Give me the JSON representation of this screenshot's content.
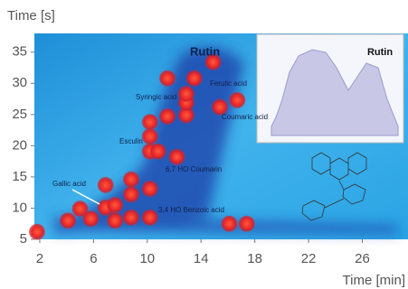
{
  "chart_data": {
    "type": "scatter",
    "y_label": "Time [s]",
    "x_label": "Time [min]",
    "x": [
      1.8,
      4.1,
      5.0,
      5.8,
      6.9,
      6.9,
      7.6,
      7.6,
      8.8,
      8.8,
      8.8,
      10.2,
      10.2,
      10.2,
      10.2,
      10.2,
      10.8,
      11.5,
      11.5,
      12.2,
      12.9,
      12.9,
      12.9,
      13.5,
      14.9,
      15.4,
      16.7,
      16.1,
      17.4
    ],
    "values": [
      6.2,
      8.0,
      9.9,
      8.3,
      10.1,
      13.7,
      8.0,
      10.5,
      8.5,
      12.2,
      14.6,
      8.5,
      13.1,
      19.1,
      21.5,
      23.8,
      19.1,
      24.7,
      30.8,
      18.2,
      24.9,
      26.9,
      28.3,
      30.8,
      33.4,
      26.2,
      27.3,
      7.5,
      7.5
    ],
    "color": "#e8262a",
    "xlim": [
      1.6,
      29.4
    ],
    "ylim": [
      5,
      38
    ],
    "xticks": [
      2,
      6,
      10,
      14,
      18,
      22,
      26
    ],
    "yticks": [
      5,
      10,
      15,
      20,
      25,
      30,
      35
    ],
    "annotations": [
      "Rutin",
      "Syringic acid",
      "Ferulic acid",
      "Coumaric acid",
      "Esculin",
      "6,7 HO Coumarin",
      "Gallic acid",
      "3,4 HO Benzoic acid"
    ],
    "inset_title": "Rutin"
  }
}
